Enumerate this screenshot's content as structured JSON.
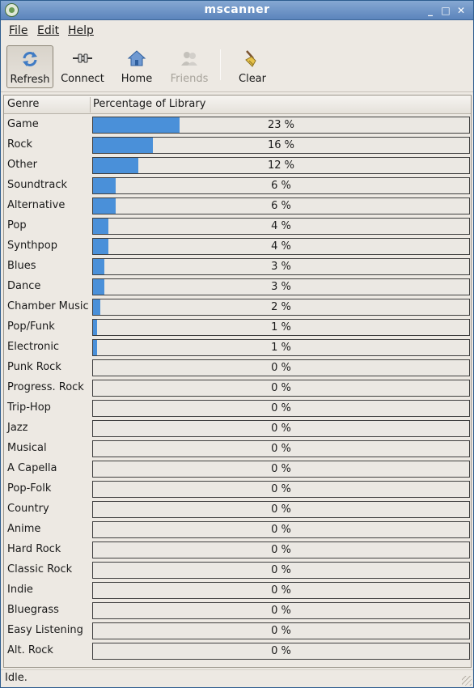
{
  "window": {
    "title": "mscanner",
    "controls": [
      "minimize-icon",
      "maximize-icon",
      "close-icon"
    ]
  },
  "menu": {
    "file_label": "File",
    "edit_label": "Edit",
    "help_label": "Help"
  },
  "toolbar": {
    "refresh_label": "Refresh",
    "connect_label": "Connect",
    "home_label": "Home",
    "friends_label": "Friends",
    "clear_label": "Clear",
    "icons": [
      "refresh-icon",
      "connect-icon",
      "home-icon",
      "friends-icon",
      "clear-broom-icon"
    ]
  },
  "table": {
    "columns": [
      "Genre",
      "Percentage of Library"
    ],
    "rows": [
      {
        "genre": "Game",
        "percent": 23,
        "percent_label": "23 %"
      },
      {
        "genre": "Rock",
        "percent": 16,
        "percent_label": "16 %"
      },
      {
        "genre": "Other",
        "percent": 12,
        "percent_label": "12 %"
      },
      {
        "genre": "Soundtrack",
        "percent": 6,
        "percent_label": "6 %"
      },
      {
        "genre": "Alternative",
        "percent": 6,
        "percent_label": "6 %"
      },
      {
        "genre": "Pop",
        "percent": 4,
        "percent_label": "4 %"
      },
      {
        "genre": "Synthpop",
        "percent": 4,
        "percent_label": "4 %"
      },
      {
        "genre": "Blues",
        "percent": 3,
        "percent_label": "3 %"
      },
      {
        "genre": "Dance",
        "percent": 3,
        "percent_label": "3 %"
      },
      {
        "genre": "Chamber Music",
        "percent": 2,
        "percent_label": "2 %"
      },
      {
        "genre": "Pop/Funk",
        "percent": 1,
        "percent_label": "1 %"
      },
      {
        "genre": "Electronic",
        "percent": 1,
        "percent_label": "1 %"
      },
      {
        "genre": "Punk Rock",
        "percent": 0,
        "percent_label": "0 %"
      },
      {
        "genre": "Progress. Rock",
        "percent": 0,
        "percent_label": "0 %"
      },
      {
        "genre": "Trip-Hop",
        "percent": 0,
        "percent_label": "0 %"
      },
      {
        "genre": "Jazz",
        "percent": 0,
        "percent_label": "0 %"
      },
      {
        "genre": "Musical",
        "percent": 0,
        "percent_label": "0 %"
      },
      {
        "genre": "A Capella",
        "percent": 0,
        "percent_label": "0 %"
      },
      {
        "genre": "Pop-Folk",
        "percent": 0,
        "percent_label": "0 %"
      },
      {
        "genre": "Country",
        "percent": 0,
        "percent_label": "0 %"
      },
      {
        "genre": "Anime",
        "percent": 0,
        "percent_label": "0 %"
      },
      {
        "genre": "Hard Rock",
        "percent": 0,
        "percent_label": "0 %"
      },
      {
        "genre": "Classic Rock",
        "percent": 0,
        "percent_label": "0 %"
      },
      {
        "genre": "Indie",
        "percent": 0,
        "percent_label": "0 %"
      },
      {
        "genre": "Bluegrass",
        "percent": 0,
        "percent_label": "0 %"
      },
      {
        "genre": "Easy Listening",
        "percent": 0,
        "percent_label": "0 %"
      },
      {
        "genre": "Alt. Rock",
        "percent": 0,
        "percent_label": "0 %"
      }
    ]
  },
  "status": {
    "text": "Idle."
  },
  "colors": {
    "progress_fill": "#4a90d9",
    "titlebar": "#5b84bc"
  }
}
